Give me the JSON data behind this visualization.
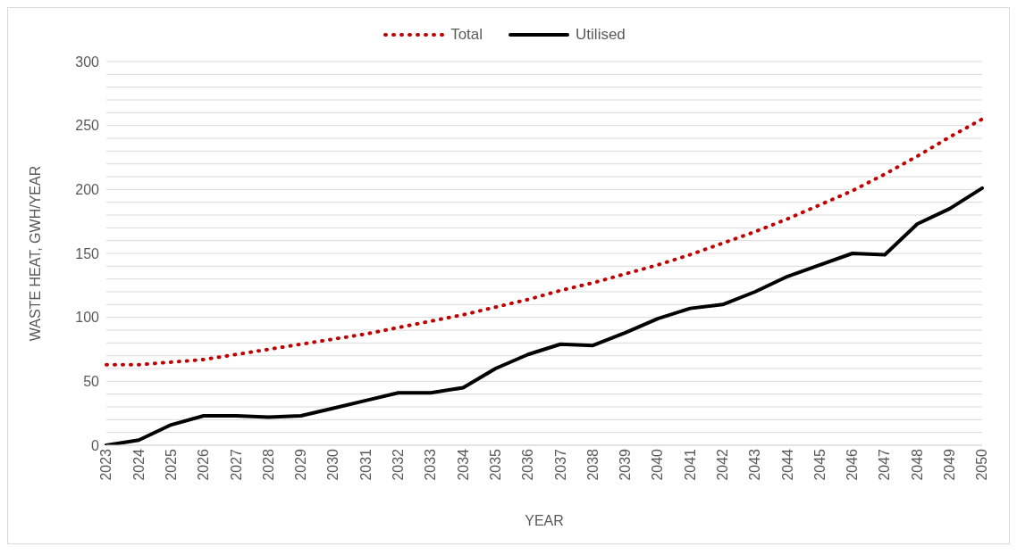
{
  "chart_data": {
    "type": "line",
    "xlabel": "YEAR",
    "ylabel": "WASTE HEAT, GWH/YEAR",
    "categories": [
      "2023",
      "2024",
      "2025",
      "2026",
      "2027",
      "2028",
      "2029",
      "2030",
      "2031",
      "2032",
      "2033",
      "2034",
      "2035",
      "2036",
      "2037",
      "2038",
      "2039",
      "2040",
      "2041",
      "2042",
      "2043",
      "2044",
      "2045",
      "2046",
      "2047",
      "2048",
      "2049",
      "2050"
    ],
    "series": [
      {
        "name": "Total",
        "color": "#c00000",
        "line_style": "dotted",
        "values": [
          63,
          63,
          65,
          67,
          71,
          75,
          79,
          83,
          87,
          92,
          97,
          102,
          108,
          114,
          121,
          127,
          134,
          141,
          149,
          158,
          167,
          177,
          188,
          199,
          212,
          226,
          241,
          255
        ]
      },
      {
        "name": "Utilised",
        "color": "#000000",
        "line_style": "solid",
        "values": [
          0,
          4,
          16,
          23,
          23,
          22,
          23,
          29,
          35,
          41,
          41,
          45,
          60,
          71,
          79,
          78,
          88,
          99,
          107,
          110,
          120,
          132,
          141,
          150,
          149,
          173,
          185,
          201
        ]
      }
    ],
    "ylim": [
      0,
      300
    ],
    "yticks": [
      0,
      {
        "value": 10,
        "label": null
      },
      {
        "value": 20,
        "label": null
      },
      {
        "value": 30,
        "label": null
      },
      {
        "value": 40,
        "label": null
      },
      50,
      {
        "value": 60,
        "label": null
      },
      {
        "value": 70,
        "label": null
      },
      {
        "value": 80,
        "label": null
      },
      {
        "value": 90,
        "label": null
      },
      100,
      {
        "value": 110,
        "label": null
      },
      {
        "value": 120,
        "label": null
      },
      {
        "value": 130,
        "label": null
      },
      {
        "value": 140,
        "label": null
      },
      150,
      {
        "value": 160,
        "label": null
      },
      {
        "value": 170,
        "label": null
      },
      {
        "value": 180,
        "label": null
      },
      {
        "value": 190,
        "label": null
      },
      200,
      {
        "value": 210,
        "label": null
      },
      {
        "value": 220,
        "label": null
      },
      {
        "value": 230,
        "label": null
      },
      {
        "value": 240,
        "label": null
      },
      250,
      {
        "value": 260,
        "label": null
      },
      {
        "value": 270,
        "label": null
      },
      {
        "value": 280,
        "label": null
      },
      {
        "value": 290,
        "label": null
      },
      300
    ],
    "grid": "y",
    "legend": "top",
    "marker": "none"
  }
}
